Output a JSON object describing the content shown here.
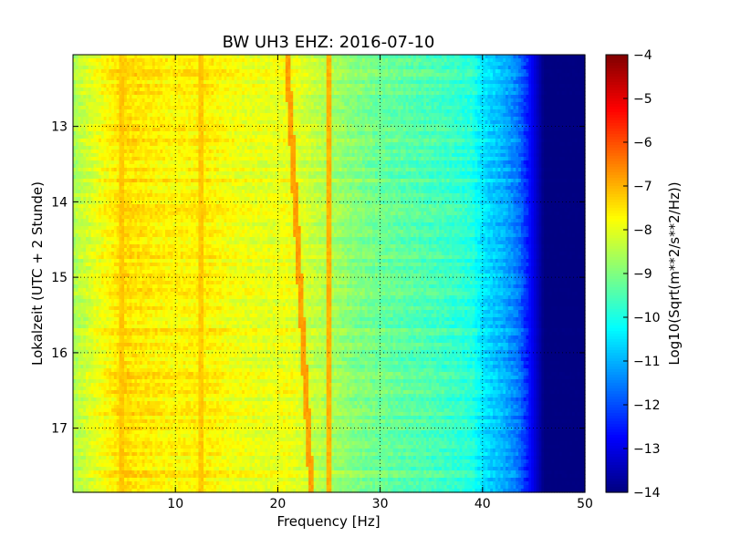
{
  "chart_data": {
    "type": "heatmap",
    "title": "BW UH3 EHZ: 2016-07-10",
    "xlabel": "Frequency [Hz]",
    "ylabel": "Lokalzeit (UTC + 2 Stunde)",
    "colorbar_label": "Log10(Sqrt(m**2/s**2/Hz))",
    "xlim": [
      0,
      50
    ],
    "ylim": [
      12.05,
      17.85
    ],
    "y_inverted": true,
    "grid": true,
    "x_ticks": [
      10,
      20,
      30,
      40,
      50
    ],
    "x_tick_labels": [
      "10",
      "20",
      "30",
      "40",
      "50"
    ],
    "y_ticks": [
      13,
      14,
      15,
      16,
      17
    ],
    "y_tick_labels": [
      "13",
      "14",
      "15",
      "16",
      "17"
    ],
    "colorbar_range": [
      -14,
      -4
    ],
    "colorbar_ticks": [
      -4,
      -5,
      -6,
      -7,
      -8,
      -9,
      -10,
      -11,
      -12,
      -13,
      -14
    ],
    "colorbar_tick_labels": [
      "−4",
      "−5",
      "−6",
      "−7",
      "−8",
      "−9",
      "−10",
      "−11",
      "−12",
      "−13",
      "−14"
    ],
    "colormap": "jet",
    "spectral_profile": [
      {
        "f": 0,
        "value": -8.6
      },
      {
        "f": 1,
        "value": -8.3
      },
      {
        "f": 3,
        "value": -7.8
      },
      {
        "f": 5,
        "value": -7.4
      },
      {
        "f": 8,
        "value": -7.6
      },
      {
        "f": 10,
        "value": -7.7
      },
      {
        "f": 13,
        "value": -7.6
      },
      {
        "f": 16,
        "value": -7.9
      },
      {
        "f": 19,
        "value": -8.0
      },
      {
        "f": 21,
        "value": -7.9
      },
      {
        "f": 24,
        "value": -8.4
      },
      {
        "f": 27,
        "value": -8.9
      },
      {
        "f": 30,
        "value": -9.2
      },
      {
        "f": 33,
        "value": -9.4
      },
      {
        "f": 36,
        "value": -9.6
      },
      {
        "f": 39,
        "value": -9.9
      },
      {
        "f": 40,
        "value": -10.5
      },
      {
        "f": 42,
        "value": -11.0
      },
      {
        "f": 43.5,
        "value": -11.6
      },
      {
        "f": 45,
        "value": -13.0
      },
      {
        "f": 46,
        "value": -14.0
      },
      {
        "f": 50,
        "value": -14.0
      }
    ],
    "lines": [
      {
        "name": "",
        "f_start": 20.9,
        "f_end": 23.3,
        "t_start": 12.05,
        "t_end": 17.85,
        "value": -6.8
      },
      {
        "name": "",
        "f_start": 25.0,
        "f_end": 25.0,
        "t_start": 12.05,
        "t_end": 17.85,
        "value": -7.0
      },
      {
        "name": "",
        "f_start": 12.5,
        "f_end": 12.5,
        "t_start": 12.05,
        "t_end": 17.85,
        "value": -7.2
      },
      {
        "name": "",
        "f_start": 4.8,
        "f_end": 4.8,
        "t_start": 12.05,
        "t_end": 17.85,
        "value": -7.2
      }
    ]
  }
}
